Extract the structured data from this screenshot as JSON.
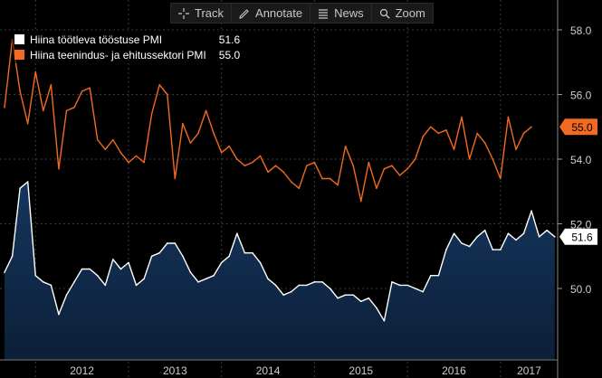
{
  "toolbar": {
    "track": "Track",
    "annotate": "Annotate",
    "news": "News",
    "zoom": "Zoom"
  },
  "legend": [
    {
      "name": "Hiina töötleva tööstuse PMI",
      "value": "51.6",
      "color": "#ffffff"
    },
    {
      "name": "Hiina teenindus- ja ehitussektori PMI",
      "value": "55.0",
      "color": "#f26a21"
    }
  ],
  "colors": {
    "background": "#000000",
    "grid": "#3a3a3a",
    "area_top": "#15365e",
    "area_bottom": "#0c1f37",
    "line_white": "#ffffff",
    "line_orange": "#f26a21",
    "axis_text": "#cccccc"
  },
  "chart_data": {
    "type": "line",
    "title": "",
    "xlabel": "",
    "ylabel": "",
    "ylim": [
      48.0,
      59.0
    ],
    "y_ticks": [
      "50.0",
      "52.0",
      "54.0",
      "56.0",
      "58.0"
    ],
    "year_labels": [
      "2012",
      "2013",
      "2014",
      "2015",
      "2016",
      "2017"
    ],
    "x_start": "2011-09",
    "grid": true,
    "legend_position": "top-left",
    "series": [
      {
        "name": "Hiina töötleva tööstuse PMI",
        "color": "#ffffff",
        "fill": true,
        "last_label": "51.6",
        "values": [
          50.5,
          51.0,
          53.1,
          53.3,
          50.4,
          50.2,
          50.1,
          49.2,
          49.8,
          50.2,
          50.6,
          50.6,
          50.4,
          50.1,
          50.9,
          50.6,
          50.8,
          50.1,
          50.3,
          51.0,
          51.1,
          51.4,
          51.4,
          51.0,
          50.5,
          50.2,
          50.3,
          50.4,
          50.8,
          51.0,
          51.7,
          51.1,
          51.1,
          50.8,
          50.3,
          50.1,
          49.8,
          49.9,
          50.1,
          50.1,
          50.2,
          50.2,
          50.0,
          49.7,
          49.8,
          49.8,
          49.6,
          49.7,
          49.4,
          49.0,
          50.2,
          50.1,
          50.1,
          50.0,
          49.9,
          50.4,
          50.4,
          51.2,
          51.7,
          51.4,
          51.3,
          51.6,
          51.8,
          51.2,
          51.2,
          51.7,
          51.5,
          51.7,
          52.4,
          51.6,
          51.8,
          51.6
        ]
      },
      {
        "name": "Hiina teenindus- ja ehitussektori PMI",
        "color": "#f26a21",
        "fill": false,
        "last_label": "55.0",
        "values": [
          55.6,
          57.7,
          56.1,
          55.1,
          56.7,
          55.5,
          56.3,
          53.7,
          55.5,
          55.6,
          56.1,
          56.2,
          54.6,
          54.3,
          54.6,
          54.2,
          53.9,
          54.1,
          53.9,
          55.4,
          56.3,
          56.0,
          53.4,
          55.1,
          54.5,
          54.8,
          55.5,
          54.8,
          54.2,
          54.4,
          54.0,
          53.8,
          53.9,
          54.1,
          53.6,
          53.8,
          53.6,
          53.3,
          53.1,
          53.8,
          53.9,
          53.4,
          53.4,
          53.2,
          54.4,
          53.8,
          52.7,
          53.9,
          53.1,
          53.7,
          53.8,
          53.5,
          53.7,
          54.0,
          54.7,
          55.0,
          54.8,
          54.9,
          54.3,
          55.3,
          54.0,
          54.8,
          54.5,
          54.0,
          53.4,
          55.3,
          54.3,
          54.8,
          55.0
        ]
      }
    ]
  }
}
